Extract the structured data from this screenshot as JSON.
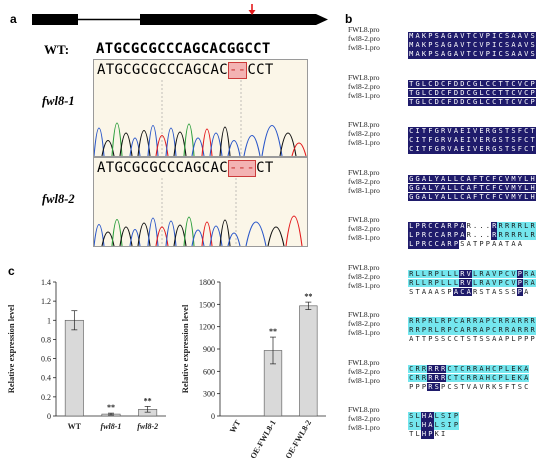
{
  "panel_a": {
    "letter": "a",
    "wt_label": "WT:",
    "wt_seq": "ATGCGCGCCCAGCACGGCCT",
    "mutants": [
      {
        "label": "fwl8-1",
        "seq_before": "ATGCGCGCCCAGCAC",
        "deletion": "--",
        "seq_after": "CCT"
      },
      {
        "label": "fwl8-2",
        "seq_before": "ATGCGCGCCCAGCAC",
        "deletion": "---",
        "seq_after": "CT"
      }
    ]
  },
  "panel_b": {
    "letter": "b",
    "blocks": [
      {
        "rows": [
          {
            "name": "FWL8.pro",
            "res": "MAKPSAGAVTCVPICSAAVS",
            "hl": "NNNNNNNNNNNNNNNNNNNN"
          },
          {
            "name": "fwl8-2.pro",
            "res": "MAKPSAGAVTCVPICSAAVS",
            "hl": "NNNNNNNNNNNNNNNNNNNN"
          },
          {
            "name": "fwl8-1.pro",
            "res": "MAKPSAGAVTCVPICSAAVS",
            "hl": "NNNNNNNNNNNNNNNNNNNN"
          }
        ]
      },
      {
        "rows": [
          {
            "name": "FWL8.pro",
            "res": "TGLCDCFDDCGLCCTTCVCP",
            "hl": "NNNNNNNNNNNNNNNNNNNN"
          },
          {
            "name": "fwl8-2.pro",
            "res": "TGLCDCFDDCGLCCTTCVCP",
            "hl": "NNNNNNNNNNNNNNNNNNNN"
          },
          {
            "name": "fwl8-1.pro",
            "res": "TGLCDCFDDCGLCCTTCVCP",
            "hl": "NNNNNNNNNNNNNNNNNNNN"
          }
        ]
      },
      {
        "rows": [
          {
            "name": "FWL8.pro",
            "res": "CITFGRVAEIVERGSTSFCT",
            "hl": "NNNNNNNNNNNNNNNNNNNN"
          },
          {
            "name": "fwl8-2.pro",
            "res": "CITFGRVAEIVERGSTSFCT",
            "hl": "NNNNNNNNNNNNNNNNNNNN"
          },
          {
            "name": "fwl8-1.pro",
            "res": "CITFGRVAEIVERGSTSFCT",
            "hl": "NNNNNNNNNNNNNNNNNNNN"
          }
        ]
      },
      {
        "rows": [
          {
            "name": "FWL8.pro",
            "res": "GGALYALLCAFTCFCVMYLH",
            "hl": "NNNNNNNNNNNNNNNNNNNN"
          },
          {
            "name": "fwl8-2.pro",
            "res": "GGALYALLCAFTCFCVMYLH",
            "hl": "NNNNNNNNNNNNNNNNNNNN"
          },
          {
            "name": "fwl8-1.pro",
            "res": "GGALYALLCAFTCFCVMYLH",
            "hl": "NNNNNNNNNNNNNNNNNNNN"
          }
        ]
      },
      {
        "rows": [
          {
            "name": "FWL8.pro",
            "res": "LPRCCARPAR...RRRRRLR",
            "hl": "NNNNNNNNNWWWWNCCCCCC"
          },
          {
            "name": "fwl8-2.pro",
            "res": "LPRCCARPAR...RRRRRLR",
            "hl": "NNNNNNNNNWWWWNCCCCCC"
          },
          {
            "name": "fwl8-1.pro",
            "res": "LPRCCARPSATPPAATAA",
            "hl": "NNNNNNNNWWWWWWWWWW"
          }
        ]
      },
      {
        "rows": [
          {
            "name": "FWL8.pro",
            "res": "RLLRPLLLRVLRAVPCVPRA",
            "hl": "CCCCCCCCNNCCCCCCCNCC"
          },
          {
            "name": "fwl8-2.pro",
            "res": "RLLRPLLLRVLRAVPCVPRA",
            "hl": "CCCCCCCCNNCCCCCCCNCC"
          },
          {
            "name": "fwl8-1.pro",
            "res": "STAAASPACARSTASSSPA",
            "hl": "WWWWWWWNNNWWWWWWWNW"
          }
        ]
      },
      {
        "rows": [
          {
            "name": "FWL8.pro",
            "res": "RRPRLRPCARRAPCRRARRR",
            "hl": "CCCCCCCCCCCCCCCCCCCC"
          },
          {
            "name": "fwl8-2.pro",
            "res": "RRPRLRPCARRAPCRRARRR",
            "hl": "CCCCCCCCCCCCCCCCCCCC"
          },
          {
            "name": "fwl8-1.pro",
            "res": "ATTPSSCCTSTSSAAPLPPP",
            "hl": "WWWWWWWWWWWWWWWWWWWW"
          }
        ]
      },
      {
        "rows": [
          {
            "name": "FWL8.pro",
            "res": "CRRRRRCTCRRAHCPLEKA",
            "hl": "CCCNNNCCCCCCCCCCCCC"
          },
          {
            "name": "fwl8-2.pro",
            "res": "CRRRRRCTCRRAHCPLEKA",
            "hl": "CCCNNNCCCCCCCCCCCCC"
          },
          {
            "name": "fwl8-1.pro",
            "res": "PPPRSPCSTVAVRKSFTSC",
            "hl": "WWWNNWWWWWWWWWWWWWW"
          }
        ]
      },
      {
        "rows": [
          {
            "name": "FWL8.pro",
            "res": "SLHALSIP",
            "hl": "CCNNCCCC"
          },
          {
            "name": "fwl8-2.pro",
            "res": "SLHALSIP",
            "hl": "CCNNCCCC"
          },
          {
            "name": "fwl8-1.pro",
            "res": "TLHPKI",
            "hl": "WWNNWW"
          }
        ]
      }
    ]
  },
  "panel_c": {
    "letter": "c",
    "colors": {
      "bar_fill": "#d9d9d9",
      "bar_stroke": "#555555"
    }
  },
  "chart_data": [
    {
      "type": "bar",
      "categories": [
        "WT",
        "fwl8-1",
        "fwl8-2"
      ],
      "values": [
        1.0,
        0.02,
        0.07
      ],
      "errors": [
        0.1,
        0.01,
        0.03
      ],
      "significance": [
        "",
        "**",
        "**"
      ],
      "ylabel": "Relative expression level",
      "ylim": [
        0,
        1.4
      ],
      "yticks": [
        "0",
        "0.2",
        "0.4",
        "0.6",
        "0.8",
        "1",
        "1.2",
        "1.4"
      ],
      "ytick_values": [
        0,
        0.2,
        0.4,
        0.6,
        0.8,
        1.0,
        1.2,
        1.4
      ]
    },
    {
      "type": "bar",
      "categories": [
        "WT",
        "OE-FWL8-1",
        "OE-FWL8-2"
      ],
      "values": [
        1,
        880,
        1480
      ],
      "errors": [
        0,
        180,
        50
      ],
      "significance": [
        "",
        "**",
        "**"
      ],
      "ylabel": "Relative expression level",
      "ylim": [
        0,
        1800
      ],
      "yticks": [
        "0",
        "300",
        "600",
        "900",
        "1200",
        "1500",
        "1800"
      ],
      "ytick_values": [
        0,
        300,
        600,
        900,
        1200,
        1500,
        1800
      ]
    }
  ]
}
